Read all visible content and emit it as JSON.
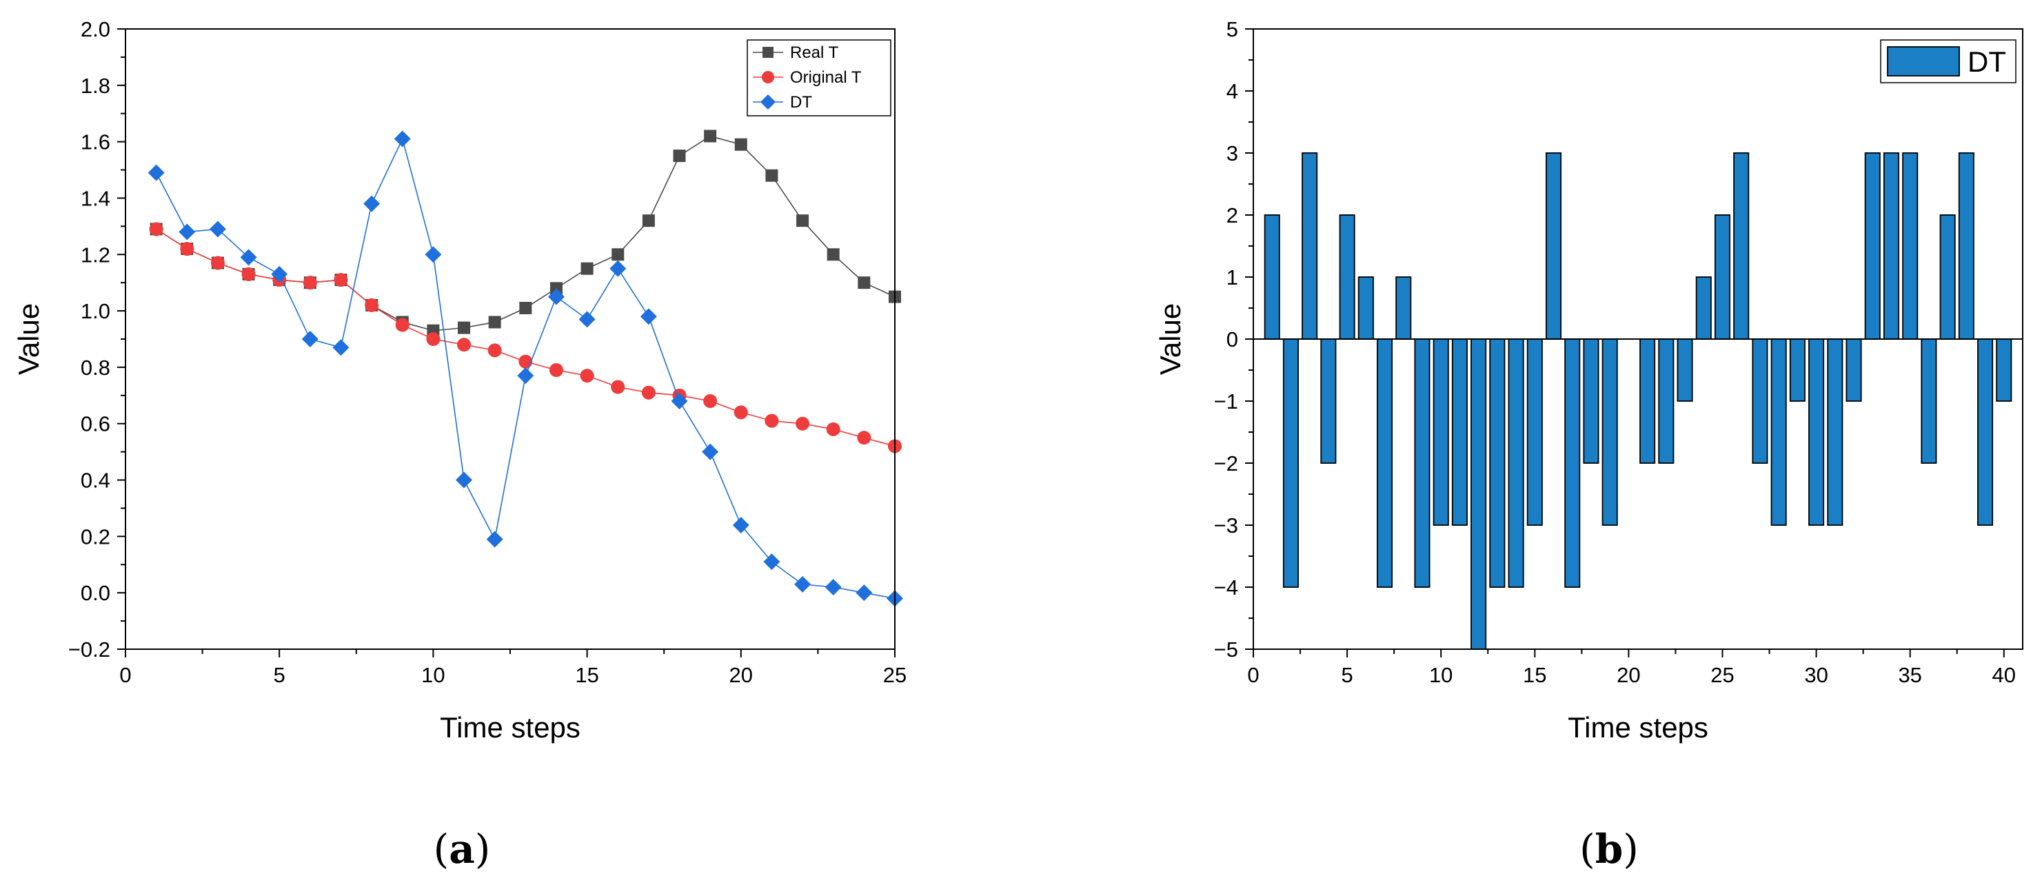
{
  "chart_data": [
    {
      "type": "line",
      "panel_label": "a",
      "xlabel": "Time steps",
      "ylabel": "Value",
      "xlim": [
        0,
        25
      ],
      "ylim": [
        -0.2,
        2.0
      ],
      "xticks": [
        0,
        5,
        10,
        15,
        20,
        25
      ],
      "xtick_labels": [
        "0",
        "5",
        "10",
        "15",
        "20",
        "25"
      ],
      "yticks": [
        -0.2,
        0.0,
        0.2,
        0.4,
        0.6,
        0.8,
        1.0,
        1.2,
        1.4,
        1.6,
        1.8,
        2.0
      ],
      "ytick_labels": [
        "−0.2",
        "0.0",
        "0.2",
        "0.4",
        "0.6",
        "0.8",
        "1.0",
        "1.2",
        "1.4",
        "1.6",
        "1.8",
        "2.0"
      ],
      "legend_position": "top-right",
      "x": [
        1,
        2,
        3,
        4,
        5,
        6,
        7,
        8,
        9,
        10,
        11,
        12,
        13,
        14,
        15,
        16,
        17,
        18,
        19,
        20,
        21,
        22,
        23,
        24,
        25
      ],
      "series": [
        {
          "name": "Real T",
          "marker": "square",
          "color": "#4a4a4a",
          "values": [
            1.29,
            1.22,
            1.17,
            1.13,
            1.11,
            1.1,
            1.11,
            1.02,
            0.96,
            0.93,
            0.94,
            0.96,
            1.01,
            1.08,
            1.15,
            1.2,
            1.32,
            1.55,
            1.62,
            1.59,
            1.48,
            1.32,
            1.2,
            1.1,
            1.05
          ]
        },
        {
          "name": "Original T",
          "marker": "circle",
          "color": "#ee3b3b",
          "values": [
            1.29,
            1.22,
            1.17,
            1.13,
            1.11,
            1.1,
            1.11,
            1.02,
            0.95,
            0.9,
            0.88,
            0.86,
            0.82,
            0.79,
            0.77,
            0.73,
            0.71,
            0.7,
            0.68,
            0.64,
            0.61,
            0.6,
            0.58,
            0.55,
            0.52
          ]
        },
        {
          "name": "DT",
          "marker": "diamond",
          "color": "#1f6fdc",
          "values": [
            1.49,
            1.28,
            1.29,
            1.19,
            1.13,
            0.9,
            0.87,
            1.38,
            1.61,
            1.2,
            0.4,
            0.19,
            0.77,
            1.05,
            0.97,
            1.15,
            0.98,
            0.68,
            0.5,
            0.24,
            0.11,
            0.03,
            0.02,
            0.0,
            -0.02
          ]
        }
      ]
    },
    {
      "type": "bar",
      "panel_label": "b",
      "xlabel": "Time steps",
      "ylabel": "Value",
      "xlim": [
        0,
        41
      ],
      "ylim": [
        -5,
        5
      ],
      "xticks": [
        0,
        5,
        10,
        15,
        20,
        25,
        30,
        35,
        40
      ],
      "xtick_labels": [
        "0",
        "5",
        "10",
        "15",
        "20",
        "25",
        "30",
        "35",
        "40"
      ],
      "yticks": [
        -5,
        -4,
        -3,
        -2,
        -1,
        0,
        1,
        2,
        3,
        4,
        5
      ],
      "ytick_labels": [
        "−5",
        "−4",
        "−3",
        "−2",
        "−1",
        "0",
        "1",
        "2",
        "3",
        "4",
        "5"
      ],
      "legend_position": "top-right",
      "series": [
        {
          "name": "DT",
          "color": "#1a7fc4",
          "x": [
            1,
            2,
            3,
            4,
            5,
            6,
            7,
            8,
            9,
            10,
            11,
            12,
            13,
            14,
            15,
            16,
            17,
            18,
            19,
            20,
            21,
            22,
            23,
            24,
            25,
            26,
            27,
            28,
            29,
            30,
            31,
            32,
            33,
            34,
            35,
            36,
            37,
            38,
            39,
            40
          ],
          "values": [
            2,
            -4,
            3,
            -2,
            2,
            1,
            -4,
            1,
            -4,
            -3,
            -3,
            -5,
            -4,
            -4,
            -3,
            3,
            -4,
            -2,
            -3,
            0,
            -2,
            -2,
            -1,
            1,
            2,
            3,
            -2,
            -3,
            -1,
            -3,
            -3,
            -1,
            3,
            3,
            3,
            -2,
            2,
            3,
            -3,
            -1
          ]
        }
      ]
    }
  ]
}
